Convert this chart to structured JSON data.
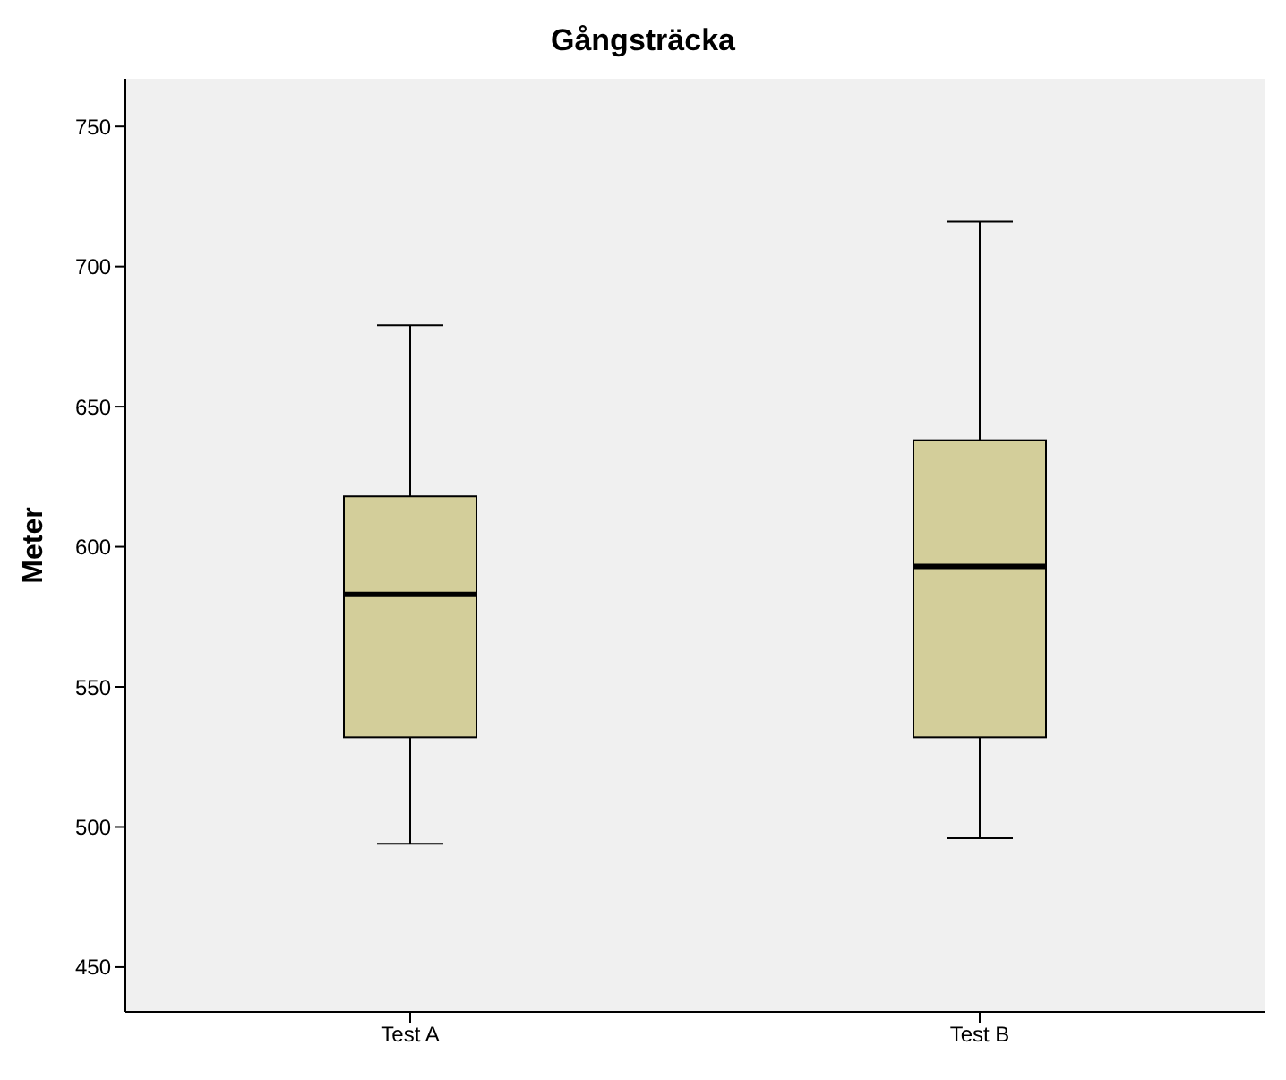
{
  "chart_data": {
    "type": "box",
    "title": "Gångsträcka",
    "ylabel": "Meter",
    "categories": [
      "Test A",
      "Test B"
    ],
    "color": "#d3ce9a",
    "boxes": [
      {
        "low": 494,
        "q1": 532,
        "median": 583,
        "q3": 618,
        "high": 679
      },
      {
        "low": 496,
        "q1": 532,
        "median": 593,
        "q3": 638,
        "high": 716
      }
    ],
    "ylim": [
      434,
      767
    ],
    "yticks": [
      450,
      500,
      550,
      600,
      650,
      700,
      750
    ],
    "grid": false,
    "legend": false
  }
}
